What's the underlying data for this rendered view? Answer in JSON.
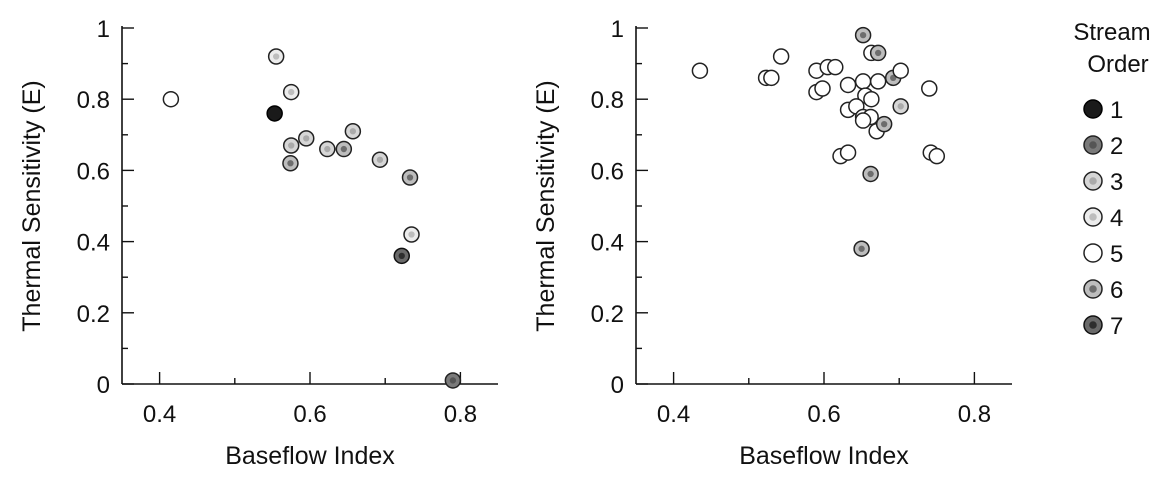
{
  "chart_data": [
    {
      "type": "scatter",
      "xlabel": "Baseflow Index",
      "ylabel": "Thermal Sensitivity (E)",
      "xlim": [
        0.35,
        0.85
      ],
      "ylim": [
        0,
        1
      ],
      "xticks": [
        0.4,
        0.6,
        0.8
      ],
      "xtick_labels": [
        "0.4",
        "0.6",
        "0.8"
      ],
      "yticks": [
        0,
        0.2,
        0.4,
        0.6,
        0.8,
        1
      ],
      "ytick_labels": [
        "0",
        "0.2",
        "0.4",
        "0.6",
        "0.8",
        "1"
      ],
      "grid": false,
      "points": [
        {
          "x": 0.415,
          "y": 0.8,
          "order": 5
        },
        {
          "x": 0.555,
          "y": 0.92,
          "order": 4
        },
        {
          "x": 0.553,
          "y": 0.76,
          "order": 1
        },
        {
          "x": 0.575,
          "y": 0.82,
          "order": 4
        },
        {
          "x": 0.575,
          "y": 0.67,
          "order": 3
        },
        {
          "x": 0.595,
          "y": 0.69,
          "order": 3
        },
        {
          "x": 0.574,
          "y": 0.62,
          "order": 6
        },
        {
          "x": 0.623,
          "y": 0.66,
          "order": 3
        },
        {
          "x": 0.645,
          "y": 0.66,
          "order": 6
        },
        {
          "x": 0.657,
          "y": 0.71,
          "order": 3
        },
        {
          "x": 0.693,
          "y": 0.63,
          "order": 3
        },
        {
          "x": 0.733,
          "y": 0.58,
          "order": 6
        },
        {
          "x": 0.735,
          "y": 0.42,
          "order": 4
        },
        {
          "x": 0.722,
          "y": 0.36,
          "order": 7
        },
        {
          "x": 0.79,
          "y": 0.01,
          "order": 2
        }
      ]
    },
    {
      "type": "scatter",
      "xlabel": "Baseflow Index",
      "ylabel": "Thermal Sensitivity (E)",
      "xlim": [
        0.35,
        0.85
      ],
      "ylim": [
        0,
        1
      ],
      "xticks": [
        0.4,
        0.6,
        0.8
      ],
      "xtick_labels": [
        "0.4",
        "0.6",
        "0.8"
      ],
      "yticks": [
        0,
        0.2,
        0.4,
        0.6,
        0.8,
        1
      ],
      "ytick_labels": [
        "0",
        "0.2",
        "0.4",
        "0.6",
        "0.8",
        "1"
      ],
      "grid": false,
      "points": [
        {
          "x": 0.435,
          "y": 0.88,
          "order": 5
        },
        {
          "x": 0.523,
          "y": 0.86,
          "order": 5
        },
        {
          "x": 0.53,
          "y": 0.86,
          "order": 5
        },
        {
          "x": 0.543,
          "y": 0.92,
          "order": 5
        },
        {
          "x": 0.59,
          "y": 0.88,
          "order": 5
        },
        {
          "x": 0.605,
          "y": 0.89,
          "order": 5
        },
        {
          "x": 0.615,
          "y": 0.89,
          "order": 5
        },
        {
          "x": 0.59,
          "y": 0.82,
          "order": 5
        },
        {
          "x": 0.598,
          "y": 0.83,
          "order": 5
        },
        {
          "x": 0.652,
          "y": 0.98,
          "order": 6
        },
        {
          "x": 0.663,
          "y": 0.93,
          "order": 5
        },
        {
          "x": 0.672,
          "y": 0.93,
          "order": 6
        },
        {
          "x": 0.632,
          "y": 0.84,
          "order": 5
        },
        {
          "x": 0.652,
          "y": 0.85,
          "order": 5
        },
        {
          "x": 0.672,
          "y": 0.85,
          "order": 5
        },
        {
          "x": 0.692,
          "y": 0.86,
          "order": 6
        },
        {
          "x": 0.702,
          "y": 0.88,
          "order": 5
        },
        {
          "x": 0.655,
          "y": 0.81,
          "order": 5
        },
        {
          "x": 0.663,
          "y": 0.8,
          "order": 5
        },
        {
          "x": 0.632,
          "y": 0.77,
          "order": 5
        },
        {
          "x": 0.643,
          "y": 0.78,
          "order": 5
        },
        {
          "x": 0.652,
          "y": 0.75,
          "order": 5
        },
        {
          "x": 0.662,
          "y": 0.75,
          "order": 5
        },
        {
          "x": 0.702,
          "y": 0.78,
          "order": 3
        },
        {
          "x": 0.74,
          "y": 0.83,
          "order": 5
        },
        {
          "x": 0.652,
          "y": 0.74,
          "order": 5
        },
        {
          "x": 0.67,
          "y": 0.71,
          "order": 5
        },
        {
          "x": 0.68,
          "y": 0.73,
          "order": 6
        },
        {
          "x": 0.622,
          "y": 0.64,
          "order": 5
        },
        {
          "x": 0.632,
          "y": 0.65,
          "order": 5
        },
        {
          "x": 0.742,
          "y": 0.65,
          "order": 5
        },
        {
          "x": 0.75,
          "y": 0.64,
          "order": 5
        },
        {
          "x": 0.662,
          "y": 0.59,
          "order": 6
        },
        {
          "x": 0.65,
          "y": 0.38,
          "order": 6
        }
      ]
    }
  ],
  "legend": {
    "title_line1": "Stream",
    "title_line2": "Order",
    "placement": "right",
    "entries": [
      {
        "label": "1",
        "order": 1
      },
      {
        "label": "2",
        "order": 2
      },
      {
        "label": "3",
        "order": 3
      },
      {
        "label": "4",
        "order": 4
      },
      {
        "label": "5",
        "order": 5
      },
      {
        "label": "6",
        "order": 6
      },
      {
        "label": "7",
        "order": 7
      }
    ]
  },
  "marker_styles": {
    "1": {
      "fill": "#1a1a1a",
      "stroke": "#000000",
      "inner": ""
    },
    "2": {
      "fill": "#7a7a7a",
      "stroke": "#222222",
      "inner": "#555555"
    },
    "3": {
      "fill": "#d6d6d6",
      "stroke": "#222222",
      "inner": "#aaaaaa"
    },
    "4": {
      "fill": "#ececec",
      "stroke": "#222222",
      "inner": "#bdbdbd"
    },
    "5": {
      "fill": "#ffffff",
      "stroke": "#222222",
      "inner": ""
    },
    "6": {
      "fill": "#bdbdbd",
      "stroke": "#222222",
      "inner": "#6d6d6d"
    },
    "7": {
      "fill": "#6a6a6a",
      "stroke": "#111111",
      "inner": "#2e2e2e"
    }
  }
}
